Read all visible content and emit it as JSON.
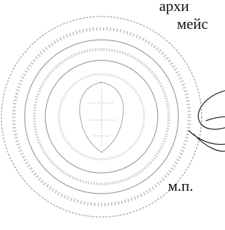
{
  "document": {
    "lines": [
      "архи",
      "мейс"
    ],
    "stamp_note": "м.п."
  }
}
